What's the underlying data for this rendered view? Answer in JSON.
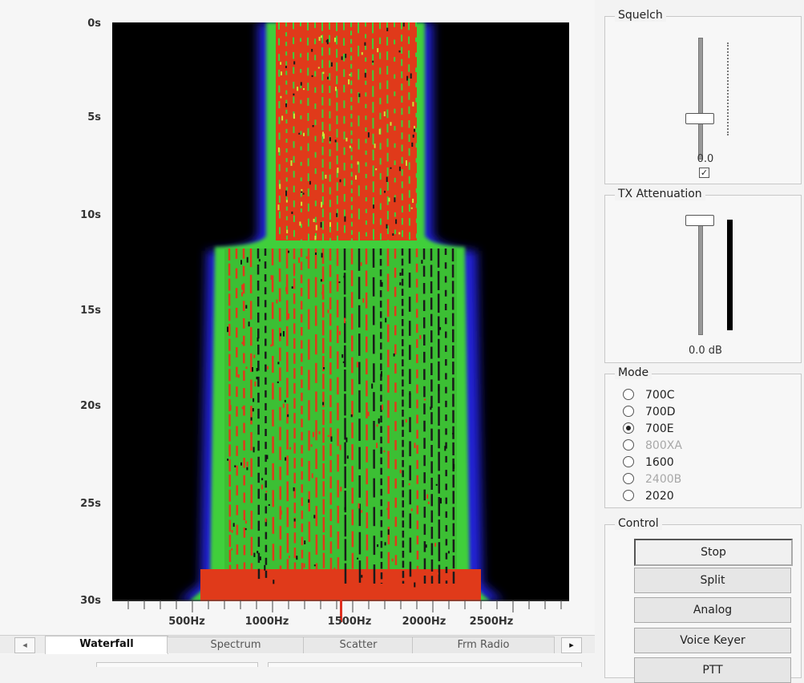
{
  "waterfall": {
    "y_labels": [
      "0s",
      "5s",
      "10s",
      "15s",
      "20s",
      "25s",
      "30s"
    ],
    "x_labels": [
      "500Hz",
      "1000Hz",
      "1500Hz",
      "2000Hz",
      "2500Hz"
    ]
  },
  "tabs": [
    "Waterfall",
    "Spectrum",
    "Scatter",
    "Frm Radio"
  ],
  "active_tab": "Waterfall",
  "squelch": {
    "title": "Squelch",
    "value": "0.0",
    "checkbox_checked": true
  },
  "tx_attenuation": {
    "title": "TX Attenuation",
    "value": "0.0 dB"
  },
  "mode": {
    "title": "Mode",
    "options": [
      {
        "label": "700C",
        "checked": false,
        "enabled": true
      },
      {
        "label": "700D",
        "checked": false,
        "enabled": true
      },
      {
        "label": "700E",
        "checked": true,
        "enabled": true
      },
      {
        "label": "800XA",
        "checked": false,
        "enabled": false
      },
      {
        "label": "1600",
        "checked": false,
        "enabled": true
      },
      {
        "label": "2400B",
        "checked": false,
        "enabled": false
      },
      {
        "label": "2020",
        "checked": false,
        "enabled": true
      }
    ]
  },
  "control": {
    "title": "Control",
    "buttons": [
      "Stop",
      "Split",
      "Analog",
      "Voice Keyer",
      "PTT"
    ]
  },
  "colors": {
    "signal_red": "#e03a1a",
    "signal_green": "#3fcf3a",
    "signal_blue": "#2a2ae0",
    "background": "#000000"
  }
}
